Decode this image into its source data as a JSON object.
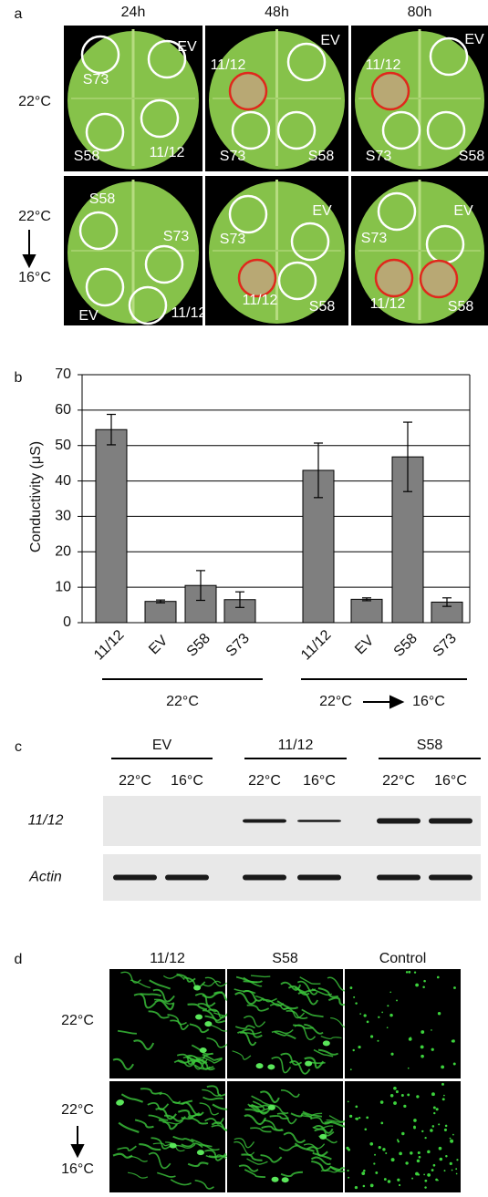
{
  "panel_a": {
    "letter": "a",
    "columns": [
      "24h",
      "48h",
      "80h"
    ],
    "rows": [
      {
        "labels": [
          "22°C"
        ],
        "leaves": [
          [
            "S73",
            "EV",
            "S58",
            "11/12"
          ],
          [
            "EV",
            "11/12",
            "S73",
            "S58"
          ],
          [
            "EV",
            "11/12",
            "S73",
            "S58"
          ]
        ]
      },
      {
        "labels": [
          "22°C",
          "16°C"
        ],
        "leaves": [
          [
            "S58",
            "S73",
            "EV",
            "11/12"
          ],
          [
            "S73",
            "EV",
            "11/12",
            "S58"
          ],
          [
            "S73",
            "EV",
            "11/12",
            "S58"
          ]
        ]
      }
    ]
  },
  "chart_data": {
    "type": "bar",
    "letter": "b",
    "y_label": "Conductivity (μS)",
    "ylim": [
      0,
      70
    ],
    "yticks": [
      0,
      10,
      20,
      30,
      40,
      50,
      60,
      70
    ],
    "grid": true,
    "color": "#7f7f7f",
    "groups": [
      {
        "labels": [
          "22°C"
        ],
        "categories": [
          "11/12",
          "EV",
          "S58",
          "S73"
        ],
        "values": [
          54.5,
          6,
          10.5,
          6.5
        ],
        "errors": [
          4.3,
          0.4,
          4.2,
          2.2
        ]
      },
      {
        "labels": [
          "22°C",
          "16°C"
        ],
        "categories": [
          "11/12",
          "EV",
          "S58",
          "S73"
        ],
        "values": [
          43,
          6.6,
          46.8,
          5.8
        ],
        "errors": [
          7.7,
          0.4,
          9.8,
          1.2
        ]
      }
    ]
  },
  "panel_c": {
    "letter": "c",
    "groups": [
      {
        "label": "EV",
        "lanes": [
          "22°C",
          "16°C"
        ]
      },
      {
        "label": "11/12",
        "lanes": [
          "22°C",
          "16°C"
        ]
      },
      {
        "label": "S58",
        "lanes": [
          "22°C",
          "16°C"
        ]
      }
    ],
    "rows": [
      "11/12",
      "Actin"
    ]
  },
  "panel_d": {
    "letter": "d",
    "columns": [
      "11/12",
      "S58",
      "Control"
    ],
    "rows": [
      {
        "labels": [
          "22°C"
        ]
      },
      {
        "labels": [
          "22°C",
          "16°C"
        ]
      }
    ]
  }
}
